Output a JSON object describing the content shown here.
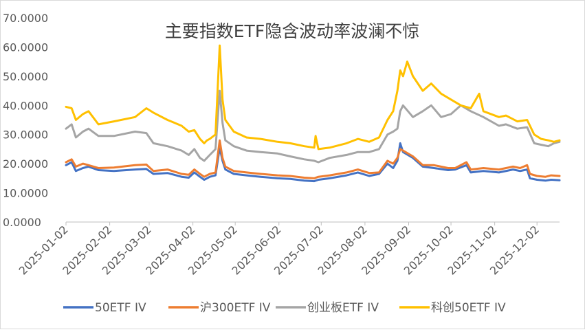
{
  "chart_data": {
    "type": "line",
    "title": "主要指数ETF隐含波动率波澜不惊",
    "xlabel": "",
    "ylabel": "",
    "ylim": [
      0,
      70
    ],
    "yticks": [
      "0.0000",
      "10.0000",
      "20.0000",
      "30.0000",
      "40.0000",
      "50.0000",
      "60.0000",
      "70.0000"
    ],
    "yticks_values": [
      0,
      10,
      20,
      30,
      40,
      50,
      60,
      70
    ],
    "xlim": [
      "2025-01-02",
      "2025-12-18"
    ],
    "xticks": [
      "2025-01-02",
      "2025-02-02",
      "2025-03-02",
      "2025-04-02",
      "2025-05-02",
      "2025-06-02",
      "2025-07-02",
      "2025-08-02",
      "2025-09-02",
      "2025-10-02",
      "2025-11-02",
      "2025-12-02"
    ],
    "grid": false,
    "legend_position": "bottom",
    "series": [
      {
        "name": "50ETF IV",
        "color": "#4472C4",
        "points": [
          [
            "2025-01-02",
            19.5
          ],
          [
            "2025-01-06",
            20.5
          ],
          [
            "2025-01-09",
            17.5
          ],
          [
            "2025-01-14",
            18.5
          ],
          [
            "2025-01-18",
            19
          ],
          [
            "2025-01-25",
            17.8
          ],
          [
            "2025-02-05",
            17.5
          ],
          [
            "2025-02-20",
            18
          ],
          [
            "2025-02-28",
            18.2
          ],
          [
            "2025-03-05",
            16.5
          ],
          [
            "2025-03-15",
            16.8
          ],
          [
            "2025-03-25",
            15.5
          ],
          [
            "2025-03-30",
            15.2
          ],
          [
            "2025-04-03",
            17
          ],
          [
            "2025-04-07",
            15.5
          ],
          [
            "2025-04-10",
            14.5
          ],
          [
            "2025-04-12",
            15
          ],
          [
            "2025-04-14",
            15.5
          ],
          [
            "2025-04-18",
            16
          ],
          [
            "2025-04-21",
            25.5
          ],
          [
            "2025-04-23",
            21
          ],
          [
            "2025-04-25",
            18
          ],
          [
            "2025-05-01",
            16.5
          ],
          [
            "2025-05-10",
            16
          ],
          [
            "2025-05-20",
            15.5
          ],
          [
            "2025-06-01",
            15
          ],
          [
            "2025-06-10",
            14.8
          ],
          [
            "2025-06-20",
            14.2
          ],
          [
            "2025-06-27",
            14
          ],
          [
            "2025-06-30",
            14.5
          ],
          [
            "2025-07-08",
            15
          ],
          [
            "2025-07-20",
            16
          ],
          [
            "2025-07-28",
            17
          ],
          [
            "2025-08-05",
            15.8
          ],
          [
            "2025-08-12",
            16.5
          ],
          [
            "2025-08-18",
            20
          ],
          [
            "2025-08-22",
            18.5
          ],
          [
            "2025-08-25",
            21
          ],
          [
            "2025-08-27",
            27
          ],
          [
            "2025-08-29",
            24
          ],
          [
            "2025-09-05",
            22
          ],
          [
            "2025-09-12",
            19
          ],
          [
            "2025-09-20",
            18.5
          ],
          [
            "2025-09-30",
            17.8
          ],
          [
            "2025-10-05",
            18
          ],
          [
            "2025-10-13",
            19.5
          ],
          [
            "2025-10-16",
            17
          ],
          [
            "2025-10-25",
            17.5
          ],
          [
            "2025-11-05",
            17
          ],
          [
            "2025-11-15",
            18
          ],
          [
            "2025-11-20",
            17.5
          ],
          [
            "2025-11-25",
            18
          ],
          [
            "2025-11-27",
            15
          ],
          [
            "2025-12-02",
            14.5
          ],
          [
            "2025-12-08",
            14.2
          ],
          [
            "2025-12-12",
            14.5
          ],
          [
            "2025-12-18",
            14.3
          ]
        ]
      },
      {
        "name": "沪300ETF IV",
        "color": "#ED7D31",
        "points": [
          [
            "2025-01-02",
            20.5
          ],
          [
            "2025-01-06",
            21.5
          ],
          [
            "2025-01-09",
            19
          ],
          [
            "2025-01-14",
            20
          ],
          [
            "2025-01-18",
            19.5
          ],
          [
            "2025-01-25",
            18.5
          ],
          [
            "2025-02-05",
            18.7
          ],
          [
            "2025-02-20",
            19.5
          ],
          [
            "2025-02-28",
            19.7
          ],
          [
            "2025-03-05",
            17.5
          ],
          [
            "2025-03-15",
            18
          ],
          [
            "2025-03-25",
            16.5
          ],
          [
            "2025-03-30",
            16.2
          ],
          [
            "2025-04-03",
            18
          ],
          [
            "2025-04-07",
            16.5
          ],
          [
            "2025-04-10",
            15.5
          ],
          [
            "2025-04-12",
            16
          ],
          [
            "2025-04-14",
            16.5
          ],
          [
            "2025-04-18",
            17
          ],
          [
            "2025-04-21",
            28
          ],
          [
            "2025-04-23",
            22
          ],
          [
            "2025-04-25",
            19
          ],
          [
            "2025-05-01",
            17.5
          ],
          [
            "2025-05-10",
            17
          ],
          [
            "2025-05-20",
            16.5
          ],
          [
            "2025-06-01",
            16
          ],
          [
            "2025-06-10",
            15.8
          ],
          [
            "2025-06-20",
            15.2
          ],
          [
            "2025-06-27",
            15
          ],
          [
            "2025-06-30",
            15.5
          ],
          [
            "2025-07-08",
            16
          ],
          [
            "2025-07-20",
            17
          ],
          [
            "2025-07-28",
            18
          ],
          [
            "2025-08-05",
            16.8
          ],
          [
            "2025-08-12",
            17
          ],
          [
            "2025-08-18",
            21
          ],
          [
            "2025-08-22",
            20
          ],
          [
            "2025-08-25",
            22
          ],
          [
            "2025-08-27",
            25
          ],
          [
            "2025-08-29",
            24.5
          ],
          [
            "2025-09-05",
            22.5
          ],
          [
            "2025-09-12",
            19.5
          ],
          [
            "2025-09-20",
            19.5
          ],
          [
            "2025-09-30",
            18.5
          ],
          [
            "2025-10-05",
            18.5
          ],
          [
            "2025-10-13",
            20.5
          ],
          [
            "2025-10-16",
            18
          ],
          [
            "2025-10-25",
            18.5
          ],
          [
            "2025-11-05",
            18
          ],
          [
            "2025-11-15",
            19
          ],
          [
            "2025-11-20",
            18.5
          ],
          [
            "2025-11-25",
            19.5
          ],
          [
            "2025-11-27",
            16.5
          ],
          [
            "2025-12-02",
            15.8
          ],
          [
            "2025-12-08",
            15.5
          ],
          [
            "2025-12-12",
            16
          ],
          [
            "2025-12-18",
            15.8
          ]
        ]
      },
      {
        "name": "创业板ETF IV",
        "color": "#A5A5A5",
        "points": [
          [
            "2025-01-02",
            32
          ],
          [
            "2025-01-06",
            33.5
          ],
          [
            "2025-01-09",
            29
          ],
          [
            "2025-01-14",
            31
          ],
          [
            "2025-01-18",
            32
          ],
          [
            "2025-01-25",
            29.5
          ],
          [
            "2025-02-05",
            29.5
          ],
          [
            "2025-02-20",
            31
          ],
          [
            "2025-02-28",
            30.5
          ],
          [
            "2025-03-05",
            27
          ],
          [
            "2025-03-15",
            26
          ],
          [
            "2025-03-25",
            24.5
          ],
          [
            "2025-03-30",
            23
          ],
          [
            "2025-04-03",
            25
          ],
          [
            "2025-04-07",
            22
          ],
          [
            "2025-04-10",
            21
          ],
          [
            "2025-04-12",
            22
          ],
          [
            "2025-04-14",
            23
          ],
          [
            "2025-04-18",
            25
          ],
          [
            "2025-04-21",
            45
          ],
          [
            "2025-04-23",
            34
          ],
          [
            "2025-04-25",
            28
          ],
          [
            "2025-05-01",
            26
          ],
          [
            "2025-05-10",
            24.5
          ],
          [
            "2025-05-20",
            24
          ],
          [
            "2025-06-01",
            23.5
          ],
          [
            "2025-06-10",
            22.5
          ],
          [
            "2025-06-20",
            21.5
          ],
          [
            "2025-06-27",
            21
          ],
          [
            "2025-06-30",
            20.5
          ],
          [
            "2025-07-08",
            22
          ],
          [
            "2025-07-20",
            23
          ],
          [
            "2025-07-28",
            24
          ],
          [
            "2025-08-05",
            24
          ],
          [
            "2025-08-12",
            25
          ],
          [
            "2025-08-18",
            30
          ],
          [
            "2025-08-22",
            31
          ],
          [
            "2025-08-25",
            32
          ],
          [
            "2025-08-27",
            38
          ],
          [
            "2025-08-29",
            40
          ],
          [
            "2025-09-05",
            36
          ],
          [
            "2025-09-12",
            38
          ],
          [
            "2025-09-18",
            40
          ],
          [
            "2025-09-25",
            36
          ],
          [
            "2025-10-02",
            37
          ],
          [
            "2025-10-09",
            40
          ],
          [
            "2025-10-16",
            38
          ],
          [
            "2025-10-25",
            36
          ],
          [
            "2025-11-05",
            33
          ],
          [
            "2025-11-10",
            33.5
          ],
          [
            "2025-11-18",
            32
          ],
          [
            "2025-11-25",
            32.5
          ],
          [
            "2025-11-30",
            27
          ],
          [
            "2025-12-05",
            26.5
          ],
          [
            "2025-12-10",
            26
          ],
          [
            "2025-12-14",
            27
          ],
          [
            "2025-12-18",
            27.5
          ]
        ]
      },
      {
        "name": "科创50ETF IV",
        "color": "#FFC000",
        "points": [
          [
            "2025-01-02",
            39.5
          ],
          [
            "2025-01-06",
            39
          ],
          [
            "2025-01-09",
            35
          ],
          [
            "2025-01-14",
            37
          ],
          [
            "2025-01-18",
            38
          ],
          [
            "2025-01-25",
            33.5
          ],
          [
            "2025-02-05",
            34.5
          ],
          [
            "2025-02-20",
            36
          ],
          [
            "2025-02-28",
            39
          ],
          [
            "2025-03-05",
            37.5
          ],
          [
            "2025-03-15",
            35
          ],
          [
            "2025-03-25",
            33
          ],
          [
            "2025-03-30",
            31
          ],
          [
            "2025-04-03",
            31.5
          ],
          [
            "2025-04-07",
            28.5
          ],
          [
            "2025-04-10",
            27
          ],
          [
            "2025-04-12",
            28
          ],
          [
            "2025-04-14",
            28.5
          ],
          [
            "2025-04-18",
            30
          ],
          [
            "2025-04-21",
            60.5
          ],
          [
            "2025-04-23",
            42
          ],
          [
            "2025-04-25",
            35
          ],
          [
            "2025-05-01",
            31
          ],
          [
            "2025-05-10",
            29
          ],
          [
            "2025-05-20",
            28.5
          ],
          [
            "2025-06-01",
            27.5
          ],
          [
            "2025-06-10",
            27
          ],
          [
            "2025-06-20",
            26
          ],
          [
            "2025-06-27",
            25.5
          ],
          [
            "2025-06-28",
            29.5
          ],
          [
            "2025-06-30",
            25
          ],
          [
            "2025-07-08",
            25.5
          ],
          [
            "2025-07-20",
            27
          ],
          [
            "2025-07-28",
            28.5
          ],
          [
            "2025-08-05",
            27.5
          ],
          [
            "2025-08-12",
            29
          ],
          [
            "2025-08-18",
            35
          ],
          [
            "2025-08-22",
            38
          ],
          [
            "2025-08-25",
            45
          ],
          [
            "2025-08-27",
            52
          ],
          [
            "2025-08-29",
            50
          ],
          [
            "2025-09-01",
            55
          ],
          [
            "2025-09-05",
            50
          ],
          [
            "2025-09-12",
            45
          ],
          [
            "2025-09-18",
            47.5
          ],
          [
            "2025-09-25",
            44
          ],
          [
            "2025-10-02",
            42
          ],
          [
            "2025-10-09",
            40
          ],
          [
            "2025-10-16",
            39
          ],
          [
            "2025-10-22",
            44
          ],
          [
            "2025-10-25",
            38
          ],
          [
            "2025-11-05",
            36
          ],
          [
            "2025-11-10",
            36.5
          ],
          [
            "2025-11-18",
            34.5
          ],
          [
            "2025-11-25",
            35
          ],
          [
            "2025-11-30",
            30
          ],
          [
            "2025-12-05",
            28.5
          ],
          [
            "2025-12-10",
            28
          ],
          [
            "2025-12-14",
            27.5
          ],
          [
            "2025-12-18",
            28
          ]
        ]
      }
    ]
  }
}
